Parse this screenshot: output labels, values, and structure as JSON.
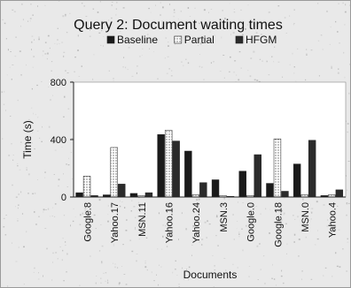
{
  "chart_data": {
    "type": "bar",
    "title": "Query 2: Document waiting times",
    "xlabel": "Documents",
    "ylabel": "Time (s)",
    "ylim": [
      0,
      800
    ],
    "yticks": [
      0,
      400,
      800
    ],
    "grid": false,
    "legend_position": "top",
    "categories": [
      "Google.8",
      "Yahoo.17",
      "MSN.11",
      "Yahoo.16",
      "Yahoo.24",
      "MSN.3",
      "Google.0",
      "Google.18",
      "MSN.0",
      "Yahoo.4"
    ],
    "series": [
      {
        "name": "Baseline",
        "color": "#1a1a1a",
        "pattern": "solid",
        "values": [
          30,
          15,
          25,
          435,
          320,
          120,
          180,
          95,
          230,
          10
        ]
      },
      {
        "name": "Partial",
        "color": "#ffffff",
        "pattern": "dotted",
        "values": [
          145,
          345,
          10,
          465,
          15,
          10,
          10,
          405,
          15,
          15
        ]
      },
      {
        "name": "HFGM",
        "color": "#2b2b2b",
        "pattern": "solid",
        "values": [
          10,
          90,
          30,
          390,
          100,
          5,
          295,
          40,
          395,
          50
        ]
      }
    ]
  }
}
